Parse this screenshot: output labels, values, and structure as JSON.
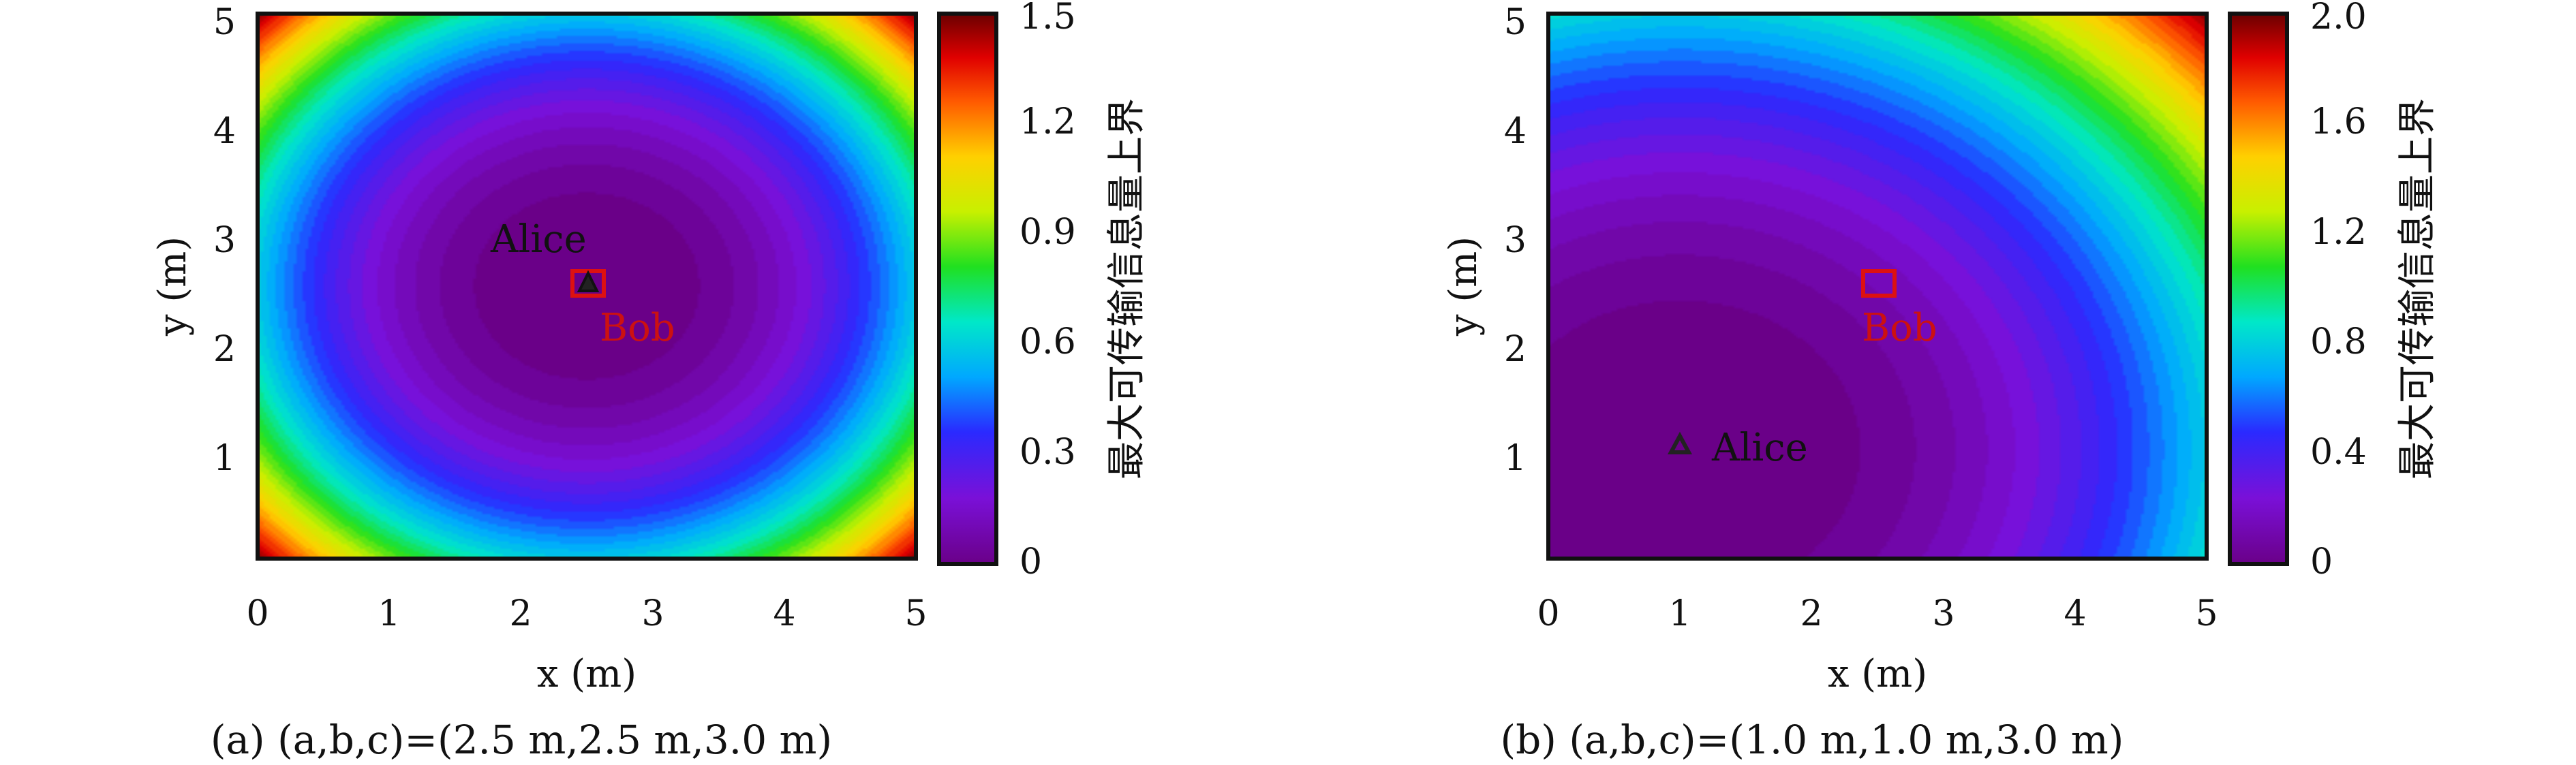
{
  "chart_data": [
    {
      "type": "heatmap",
      "xlabel": "x (m)",
      "ylabel": "y (m)",
      "xlim": [
        0,
        5
      ],
      "ylim": [
        0,
        5
      ],
      "xticks": [
        "0",
        "1",
        "2",
        "3",
        "4",
        "5"
      ],
      "yticks": [
        "1",
        "2",
        "3",
        "4",
        "5"
      ],
      "colorbar": {
        "label": "最大可传输信息量上界",
        "range": [
          0,
          1.5
        ],
        "ticks": [
          "0",
          "0.3",
          "0.6",
          "0.9",
          "1.2",
          "1.5"
        ],
        "colormap": "rainbow-purple-to-darkred"
      },
      "alice": {
        "label": "Alice",
        "x": 2.5,
        "y": 2.5
      },
      "bob": {
        "label": "Bob",
        "x": 2.5,
        "y": 2.5
      },
      "caption": "(a) (a,b,c)=(2.5 m,2.5 m,3.0 m)"
    },
    {
      "type": "heatmap",
      "xlabel": "x (m)",
      "ylabel": "y (m)",
      "xlim": [
        0,
        5
      ],
      "ylim": [
        0,
        5
      ],
      "xticks": [
        "0",
        "1",
        "2",
        "3",
        "4",
        "5"
      ],
      "yticks": [
        "1",
        "2",
        "3",
        "4",
        "5"
      ],
      "colorbar": {
        "label": "最大可传输信息量上界",
        "range": [
          0,
          2.0
        ],
        "ticks": [
          "0",
          "0.4",
          "0.8",
          "1.2",
          "1.6",
          "2.0"
        ],
        "colormap": "rainbow-purple-to-darkred"
      },
      "alice": {
        "label": "Alice",
        "x": 1.0,
        "y": 1.0
      },
      "bob": {
        "label": "Bob",
        "x": 2.5,
        "y": 2.5
      },
      "caption": "(b) (a,b,c)=(1.0 m,1.0 m,3.0 m)"
    }
  ]
}
